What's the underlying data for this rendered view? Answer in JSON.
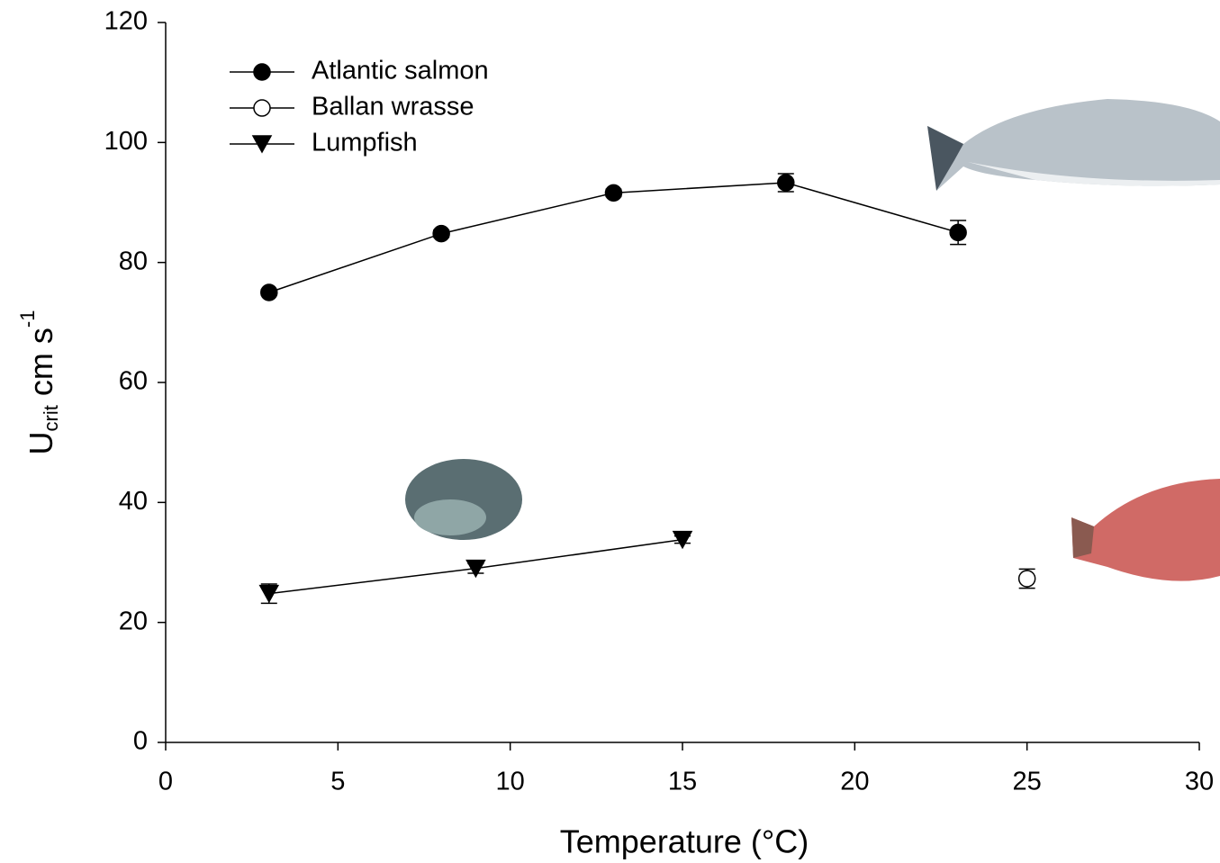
{
  "chart_data": {
    "type": "line",
    "xlabel": "Temperature (°C)",
    "ylabel": {
      "base": "U",
      "sub": "crit",
      "unit": " cm s",
      "sup": "-1"
    },
    "xlim": [
      0,
      30
    ],
    "xticks": [
      0,
      5,
      10,
      15,
      20,
      25,
      30
    ],
    "ylim": [
      0,
      120
    ],
    "yticks": [
      0,
      20,
      40,
      60,
      80,
      100,
      120
    ],
    "grid": false,
    "legend": "upper left",
    "series": [
      {
        "name": "Atlantic salmon",
        "color": "#000000",
        "marker": "circle",
        "fill": "#000000",
        "x": [
          3,
          8,
          13,
          18,
          23
        ],
        "values": [
          75,
          84.8,
          91.6,
          93.3,
          85
        ],
        "errors": [
          0.5,
          0.6,
          0.6,
          1.5,
          2
        ]
      },
      {
        "name": "Ballan wrasse",
        "color": "#000000",
        "marker": "circle",
        "fill": "#ffffff",
        "x": [
          25
        ],
        "values": [
          27.3
        ],
        "errors": [
          1.6
        ]
      },
      {
        "name": "Lumpfish",
        "color": "#000000",
        "marker": "triangle-down",
        "fill": "#000000",
        "x": [
          3,
          9,
          15
        ],
        "values": [
          24.8,
          29,
          33.8
        ],
        "errors": [
          1.6,
          0.8,
          0.6
        ]
      }
    ]
  }
}
